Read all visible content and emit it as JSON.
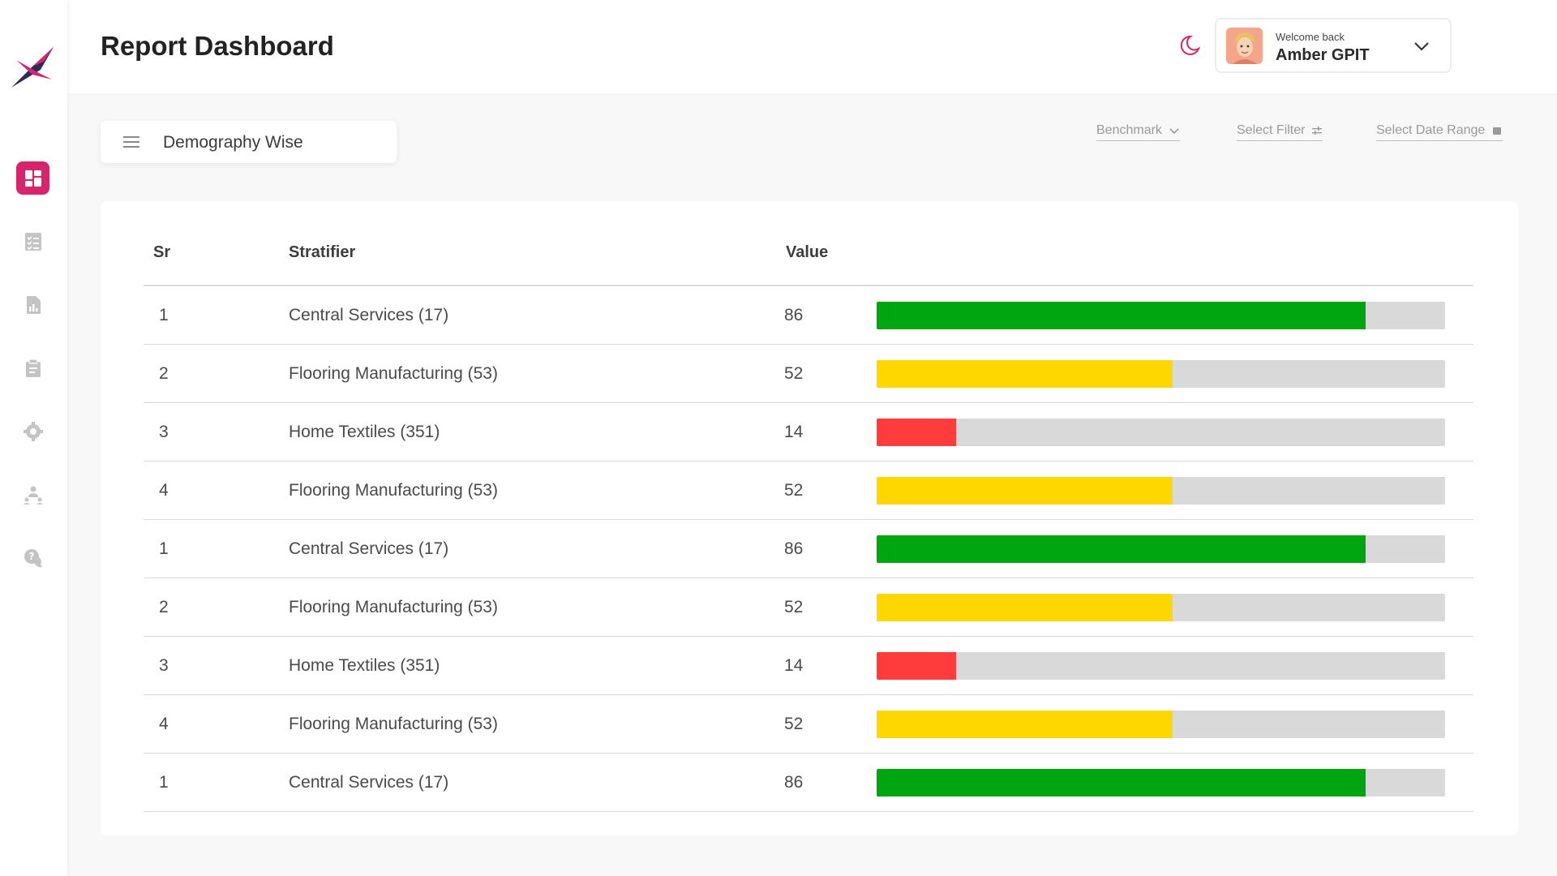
{
  "header": {
    "title": "Report Dashboard",
    "welcome": "Welcome back",
    "username": "Amber GPIT"
  },
  "sidebar": {
    "items": [
      {
        "icon": "dashboard-icon",
        "active": true
      },
      {
        "icon": "checklist-icon",
        "active": false
      },
      {
        "icon": "report-file-icon",
        "active": false
      },
      {
        "icon": "clipboard-icon",
        "active": false
      },
      {
        "icon": "gear-icon",
        "active": false
      },
      {
        "icon": "people-network-icon",
        "active": false
      },
      {
        "icon": "help-chat-icon",
        "active": false
      }
    ]
  },
  "toolbar": {
    "view_label": "Demography Wise",
    "benchmark": "Benchmark",
    "select_filter": "Select Filter",
    "date_range": "Select Date Range"
  },
  "table": {
    "columns": [
      "Sr",
      "Stratifier",
      "Value"
    ],
    "rows": [
      {
        "sr": "1",
        "stratifier": "Central Services (17)",
        "value": "86",
        "color": "#00a60f"
      },
      {
        "sr": "2",
        "stratifier": "Flooring Manufacturing (53)",
        "value": "52",
        "color": "#ffd700"
      },
      {
        "sr": "3",
        "stratifier": "Home Textiles (351)",
        "value": "14",
        "color": "#ff3c3c"
      },
      {
        "sr": "4",
        "stratifier": "Flooring Manufacturing (53)",
        "value": "52",
        "color": "#ffd700"
      },
      {
        "sr": "1",
        "stratifier": "Central Services (17)",
        "value": "86",
        "color": "#00a60f"
      },
      {
        "sr": "2",
        "stratifier": "Flooring Manufacturing (53)",
        "value": "52",
        "color": "#ffd700"
      },
      {
        "sr": "3",
        "stratifier": "Home Textiles (351)",
        "value": "14",
        "color": "#ff3c3c"
      },
      {
        "sr": "4",
        "stratifier": "Flooring Manufacturing (53)",
        "value": "52",
        "color": "#ffd700"
      },
      {
        "sr": "1",
        "stratifier": "Central Services (17)",
        "value": "86",
        "color": "#00a60f"
      }
    ]
  },
  "colors": {
    "accent": "#d6256c",
    "track": "#d9d9d9"
  }
}
